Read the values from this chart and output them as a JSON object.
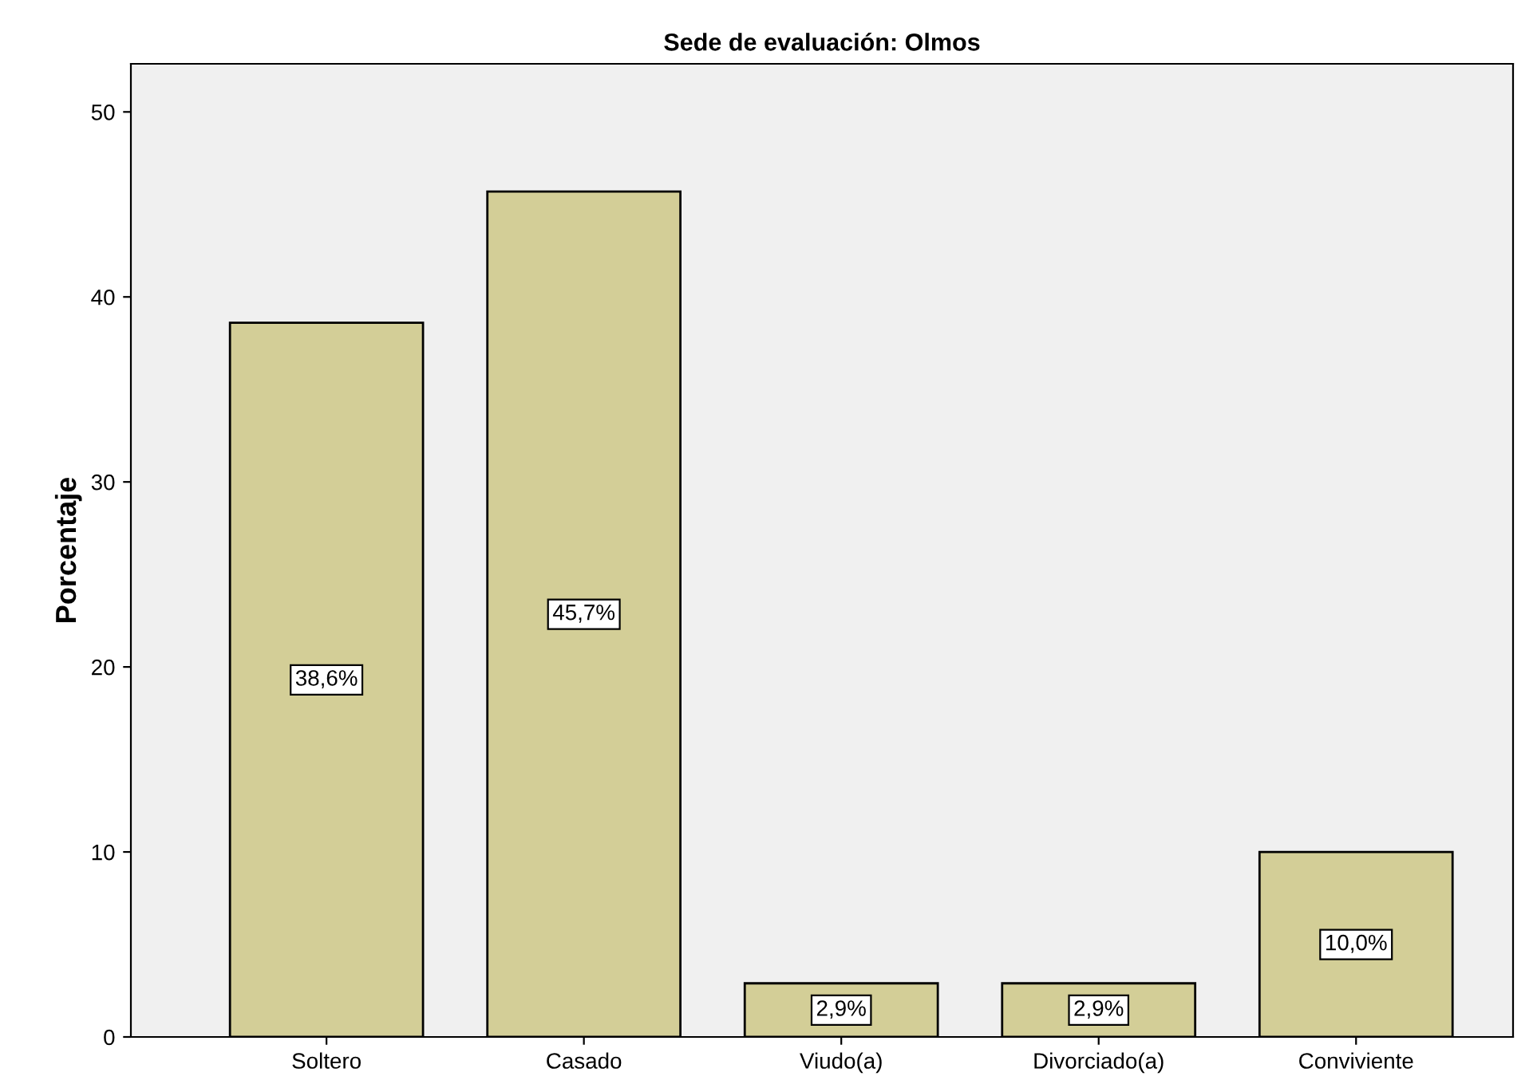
{
  "chart_data": {
    "type": "bar",
    "title": "Sede de evaluación: Olmos",
    "ylabel": "Porcentaje",
    "categories": [
      "Soltero",
      "Casado",
      "Viudo(a)",
      "Divorciado(a)",
      "Conviviente"
    ],
    "values": [
      38.6,
      45.7,
      2.9,
      2.9,
      10.0
    ],
    "value_labels": [
      "38,6%",
      "45,7%",
      "2,9%",
      "2,9%",
      "10,0%"
    ],
    "color": "#d3ce97",
    "ylim": [
      0,
      52.6
    ],
    "yticks": [
      0,
      10,
      20,
      30,
      40,
      50
    ],
    "grid": false
  }
}
